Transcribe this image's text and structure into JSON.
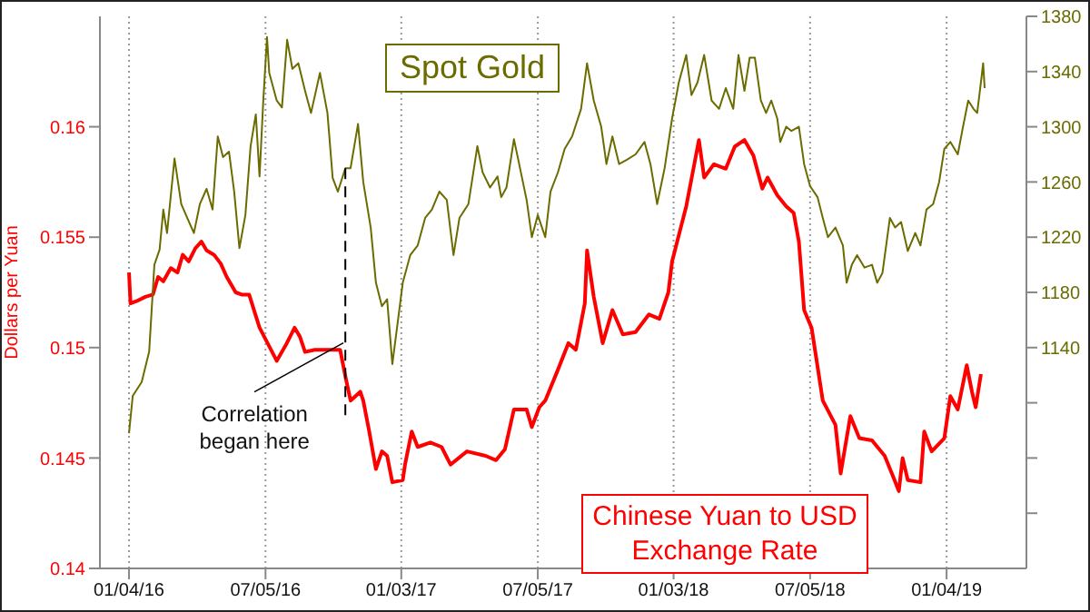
{
  "chart_data": {
    "type": "line",
    "ylabel": "Dollars per Yuan",
    "marker": "none",
    "grid": "x",
    "xlim": [
      "2015-11-26",
      "2019-04-21"
    ],
    "xticks": [
      {
        "value": "2016-01-04",
        "label": "01/04/16"
      },
      {
        "value": "2016-07-05",
        "label": "07/05/16"
      },
      {
        "value": "2017-01-03",
        "label": "01/03/17"
      },
      {
        "value": "2017-07-05",
        "label": "07/05/17"
      },
      {
        "value": "2018-01-03",
        "label": "01/03/18"
      },
      {
        "value": "2018-07-05",
        "label": "07/05/18"
      },
      {
        "value": "2019-01-04",
        "label": "01/04/19"
      }
    ],
    "ylim": [
      0.14,
      0.165
    ],
    "yticks": [
      0.14,
      0.145,
      0.15,
      0.155,
      0.16
    ],
    "y2lim": [
      980,
      1380
    ],
    "y2ticks": [
      {
        "value": 1020,
        "label": null
      },
      {
        "value": 1060,
        "label": null
      },
      {
        "value": 1100,
        "label": null
      },
      1140,
      1180,
      1220,
      1260,
      1300,
      1340,
      1380
    ],
    "ref_lines": [
      {
        "axis": "x",
        "value": "2016-10-20",
        "color": "#000000",
        "line_style": "dashed"
      }
    ],
    "annotations": [
      {
        "text": "Correlation began here",
        "x": "2016-10-20",
        "y": 0.15
      }
    ],
    "series": [
      {
        "name": "Chinese Yuan to USD Exchange Rate",
        "color": "#ff0000",
        "x": [
          "2016-01-04",
          "2016-01-06",
          "2016-01-14",
          "2016-01-26",
          "2016-02-05",
          "2016-02-12",
          "2016-02-19",
          "2016-02-29",
          "2016-03-09",
          "2016-03-16",
          "2016-03-24",
          "2016-04-02",
          "2016-04-10",
          "2016-04-17",
          "2016-04-27",
          "2016-05-06",
          "2016-05-14",
          "2016-05-26",
          "2016-06-03",
          "2016-06-13",
          "2016-06-27",
          "2016-07-20",
          "2016-08-01",
          "2016-08-13",
          "2016-08-20",
          "2016-08-27",
          "2016-09-09",
          "2016-09-26",
          "2016-10-13",
          "2016-10-20",
          "2016-10-27",
          "2016-11-09",
          "2016-11-13",
          "2016-11-21",
          "2016-11-30",
          "2016-12-08",
          "2016-12-15",
          "2016-12-22",
          "2017-01-05",
          "2017-01-08",
          "2017-01-17",
          "2017-01-25",
          "2017-02-11",
          "2017-02-26",
          "2017-03-10",
          "2017-04-01",
          "2017-04-26",
          "2017-05-10",
          "2017-05-22",
          "2017-06-03",
          "2017-06-20",
          "2017-06-27",
          "2017-07-07",
          "2017-07-15",
          "2017-08-01",
          "2017-08-15",
          "2017-08-25",
          "2017-09-06",
          "2017-09-09",
          "2017-09-18",
          "2017-09-30",
          "2017-10-13",
          "2017-10-27",
          "2017-11-13",
          "2017-12-01",
          "2017-12-15",
          "2017-12-27",
          "2018-01-01",
          "2018-01-20",
          "2018-02-06",
          "2018-02-13",
          "2018-02-26",
          "2018-03-14",
          "2018-03-26",
          "2018-04-08",
          "2018-04-20",
          "2018-05-02",
          "2018-05-09",
          "2018-05-22",
          "2018-06-03",
          "2018-06-13",
          "2018-06-20",
          "2018-06-27",
          "2018-07-07",
          "2018-07-22",
          "2018-08-08",
          "2018-08-15",
          "2018-08-28",
          "2018-09-09",
          "2018-09-26",
          "2018-10-13",
          "2018-10-25",
          "2018-11-01",
          "2018-11-06",
          "2018-11-13",
          "2018-11-30",
          "2018-12-05",
          "2018-12-15",
          "2019-01-01",
          "2019-01-09",
          "2019-01-19",
          "2019-01-31",
          "2019-02-07",
          "2019-02-12",
          "2019-02-19"
        ],
        "values": [
          0.1534,
          0.152,
          0.1521,
          0.1523,
          0.1524,
          0.1532,
          0.153,
          0.1536,
          0.1534,
          0.1542,
          0.1539,
          0.1545,
          0.1548,
          0.1544,
          0.1542,
          0.1538,
          0.1532,
          0.1525,
          0.1524,
          0.1524,
          0.1509,
          0.1494,
          0.1501,
          0.1509,
          0.1505,
          0.1498,
          0.1499,
          0.1499,
          0.1499,
          0.1487,
          0.1476,
          0.148,
          0.1476,
          0.1462,
          0.1445,
          0.1453,
          0.1451,
          0.1439,
          0.144,
          0.1447,
          0.1462,
          0.1455,
          0.1457,
          0.1455,
          0.1447,
          0.1453,
          0.1451,
          0.1449,
          0.1454,
          0.1472,
          0.1472,
          0.1464,
          0.1473,
          0.1476,
          0.149,
          0.1502,
          0.1499,
          0.152,
          0.1544,
          0.1523,
          0.1502,
          0.1517,
          0.1506,
          0.1507,
          0.1515,
          0.1513,
          0.1525,
          0.1539,
          0.1564,
          0.1594,
          0.1577,
          0.1583,
          0.1581,
          0.1591,
          0.1594,
          0.1587,
          0.1572,
          0.1577,
          0.1569,
          0.1564,
          0.1561,
          0.1548,
          0.1517,
          0.1509,
          0.1476,
          0.1465,
          0.1443,
          0.1469,
          0.1459,
          0.1458,
          0.1451,
          0.1441,
          0.1435,
          0.145,
          0.144,
          0.1439,
          0.1462,
          0.1453,
          0.1459,
          0.1478,
          0.1472,
          0.1492,
          0.148,
          0.1473,
          0.1488
        ]
      },
      {
        "name": "Spot Gold",
        "color": "#6b6b00",
        "axis": "y2",
        "x": [
          "2016-01-04",
          "2016-01-09",
          "2016-01-21",
          "2016-01-31",
          "2016-02-07",
          "2016-02-14",
          "2016-02-19",
          "2016-02-24",
          "2016-03-05",
          "2016-03-14",
          "2016-03-22",
          "2016-03-31",
          "2016-04-08",
          "2016-04-17",
          "2016-04-25",
          "2016-05-02",
          "2016-05-09",
          "2016-05-17",
          "2016-05-24",
          "2016-05-31",
          "2016-06-08",
          "2016-06-15",
          "2016-06-22",
          "2016-06-27",
          "2016-07-02",
          "2016-07-07",
          "2016-07-10",
          "2016-07-20",
          "2016-07-27",
          "2016-08-03",
          "2016-08-10",
          "2016-08-18",
          "2016-08-27",
          "2016-09-04",
          "2016-09-16",
          "2016-09-26",
          "2016-10-03",
          "2016-10-10",
          "2016-10-20",
          "2016-10-27",
          "2016-11-06",
          "2016-11-13",
          "2016-11-23",
          "2016-11-30",
          "2016-12-08",
          "2016-12-15",
          "2016-12-22",
          "2017-01-05",
          "2017-01-15",
          "2017-01-25",
          "2017-02-04",
          "2017-02-13",
          "2017-02-23",
          "2017-03-05",
          "2017-03-14",
          "2017-03-22",
          "2017-04-03",
          "2017-04-15",
          "2017-04-22",
          "2017-05-02",
          "2017-05-12",
          "2017-05-17",
          "2017-05-24",
          "2017-06-03",
          "2017-06-10",
          "2017-06-20",
          "2017-06-27",
          "2017-07-05",
          "2017-07-15",
          "2017-07-22",
          "2017-08-01",
          "2017-08-10",
          "2017-08-20",
          "2017-09-01",
          "2017-09-09",
          "2017-09-18",
          "2017-09-28",
          "2017-10-05",
          "2017-10-13",
          "2017-10-22",
          "2017-11-01",
          "2017-11-13",
          "2017-11-25",
          "2017-12-03",
          "2017-12-12",
          "2017-12-22",
          "2018-01-01",
          "2018-01-10",
          "2018-01-20",
          "2018-01-27",
          "2018-02-04",
          "2018-02-13",
          "2018-02-23",
          "2018-03-05",
          "2018-03-14",
          "2018-03-24",
          "2018-03-31",
          "2018-04-08",
          "2018-04-15",
          "2018-04-22",
          "2018-04-30",
          "2018-05-07",
          "2018-05-14",
          "2018-05-22",
          "2018-05-26",
          "2018-06-03",
          "2018-06-10",
          "2018-06-20",
          "2018-06-27",
          "2018-07-05",
          "2018-07-15",
          "2018-07-22",
          "2018-07-29",
          "2018-08-08",
          "2018-08-18",
          "2018-08-23",
          "2018-08-30",
          "2018-09-06",
          "2018-09-16",
          "2018-09-26",
          "2018-10-03",
          "2018-10-10",
          "2018-10-20",
          "2018-10-27",
          "2018-11-04",
          "2018-11-13",
          "2018-11-23",
          "2018-11-30",
          "2018-12-08",
          "2018-12-17",
          "2018-12-25",
          "2019-01-01",
          "2019-01-09",
          "2019-01-19",
          "2019-01-26",
          "2019-02-02",
          "2019-02-09",
          "2019-02-14",
          "2019-02-19",
          "2019-02-22",
          "2019-02-24"
        ],
        "values": [
          1078,
          1105,
          1115,
          1137,
          1200,
          1211,
          1240,
          1223,
          1277,
          1244,
          1234,
          1223,
          1244,
          1255,
          1240,
          1293,
          1278,
          1282,
          1253,
          1212,
          1236,
          1286,
          1309,
          1264,
          1319,
          1365,
          1339,
          1319,
          1314,
          1363,
          1342,
          1346,
          1326,
          1310,
          1339,
          1310,
          1263,
          1253,
          1270,
          1270,
          1302,
          1260,
          1227,
          1187,
          1170,
          1175,
          1128,
          1187,
          1207,
          1214,
          1234,
          1240,
          1253,
          1247,
          1207,
          1234,
          1244,
          1286,
          1267,
          1256,
          1264,
          1249,
          1256,
          1291,
          1273,
          1247,
          1220,
          1236,
          1220,
          1253,
          1267,
          1284,
          1293,
          1313,
          1346,
          1319,
          1300,
          1273,
          1293,
          1273,
          1276,
          1280,
          1289,
          1273,
          1244,
          1270,
          1306,
          1332,
          1352,
          1323,
          1332,
          1352,
          1319,
          1313,
          1328,
          1313,
          1352,
          1326,
          1350,
          1350,
          1319,
          1310,
          1319,
          1306,
          1289,
          1300,
          1297,
          1300,
          1273,
          1257,
          1249,
          1234,
          1220,
          1227,
          1214,
          1187,
          1200,
          1207,
          1198,
          1200,
          1187,
          1194,
          1234,
          1227,
          1231,
          1210,
          1223,
          1214,
          1240,
          1244,
          1260,
          1284,
          1289,
          1280,
          1300,
          1319,
          1313,
          1310,
          1332,
          1346,
          1328
        ]
      }
    ]
  }
}
